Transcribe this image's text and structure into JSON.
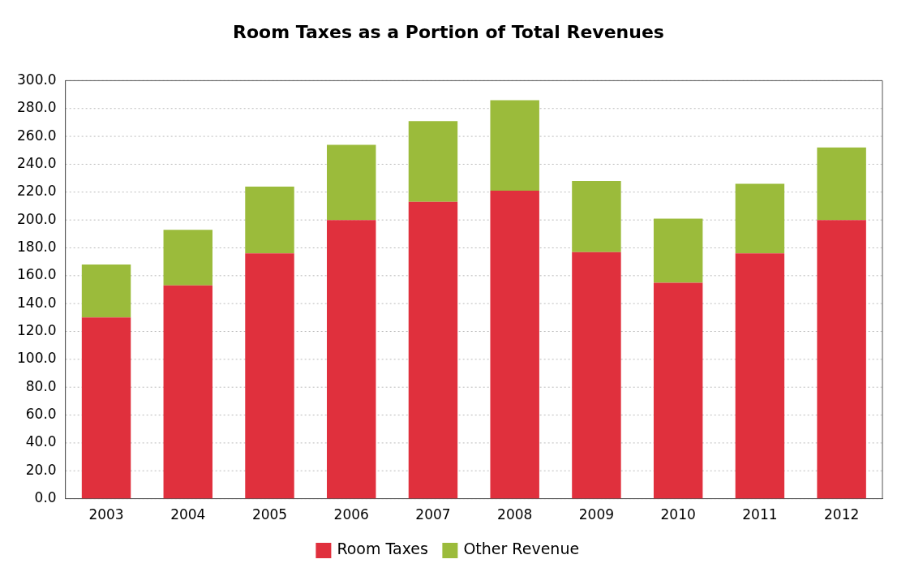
{
  "chart_data": {
    "type": "bar",
    "title": "Room Taxes as a Portion of Total Revenues",
    "categories": [
      "2003",
      "2004",
      "2005",
      "2006",
      "2007",
      "2008",
      "2009",
      "2010",
      "2011",
      "2012"
    ],
    "stacked": true,
    "series": [
      {
        "name": "Room Taxes",
        "color": "#e0303d",
        "values": [
          130,
          153,
          176,
          200,
          213,
          221,
          177,
          155,
          176,
          200
        ]
      },
      {
        "name": "Other Revenue",
        "color": "#9bbb3b",
        "values": [
          38,
          40,
          48,
          54,
          58,
          65,
          51,
          46,
          50,
          52
        ]
      }
    ],
    "ylim": [
      0,
      300
    ],
    "yticks": [
      {
        "value": 0,
        "label": "0.0"
      },
      {
        "value": 20,
        "label": "20.0"
      },
      {
        "value": 40,
        "label": "40.0"
      },
      {
        "value": 60,
        "label": "60.0"
      },
      {
        "value": 80,
        "label": "80.0"
      },
      {
        "value": 100,
        "label": "100.0"
      },
      {
        "value": 120,
        "label": "120.0"
      },
      {
        "value": 140,
        "label": "140.0"
      },
      {
        "value": 160,
        "label": "160.0"
      },
      {
        "value": 180,
        "label": "180.0"
      },
      {
        "value": 200,
        "label": "200.0"
      },
      {
        "value": 220,
        "label": "220.0"
      },
      {
        "value": 240,
        "label": "240.0"
      },
      {
        "value": 260,
        "label": "260.0"
      },
      {
        "value": 280,
        "label": "280.0"
      },
      {
        "value": 300,
        "label": "300.0"
      }
    ],
    "grid": "y",
    "legend": "bottom"
  }
}
